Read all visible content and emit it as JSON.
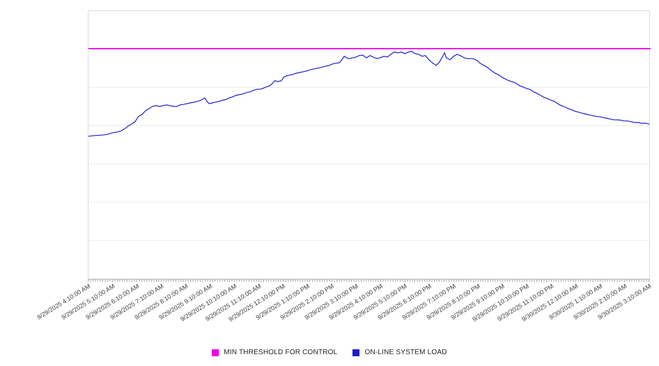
{
  "colors": {
    "threshold": "#ee00ee",
    "load": "#1c1ccd",
    "grid": "#ececec",
    "axis_border": "#c2c2c2",
    "tick": "#a6a6a6",
    "x_label_text": "#3f3f3f",
    "legend_text": "#1f1f1f",
    "background": "#ffffff"
  },
  "legend": {
    "items": [
      {
        "label": "MIN THRESHOLD FOR CONTROL",
        "color": "#ee00ee"
      },
      {
        "label": "ON-LINE SYSTEM LOAD",
        "color": "#1c1ccd"
      }
    ]
  },
  "chart_data": {
    "type": "line",
    "title": "",
    "xlabel": "",
    "ylabel": "",
    "grid": true,
    "legend_position": "bottom",
    "ylim": [
      0,
      7
    ],
    "y_axis_tick_labels_visible": false,
    "y_value_units": "gridline intervals above x-axis (y-axis shows no numeric labels)",
    "x_labels": [
      "9/29/2025 4:10:00 AM",
      "9/29/2025 5:10:00 AM",
      "9/29/2025 6:10:00 AM",
      "9/29/2025 7:10:00 AM",
      "9/29/2025 8:10:00 AM",
      "9/29/2025 9:10:00 AM",
      "9/29/2025 10:10:00 AM",
      "9/29/2025 11:10:00 AM",
      "9/29/2025 12:10:00 PM",
      "9/29/2025 1:10:00 PM",
      "9/29/2025 2:10:00 PM",
      "9/29/2025 3:10:00 PM",
      "9/29/2025 4:10:00 PM",
      "9/29/2025 5:10:00 PM",
      "9/29/2025 6:10:00 PM",
      "9/29/2025 7:10:00 PM",
      "9/29/2025 8:10:00 PM",
      "9/29/2025 9:10:00 PM",
      "9/29/2025 10:10:00 PM",
      "9/29/2025 11:10:00 PM",
      "9/30/2025 12:10:00 AM",
      "9/30/2025 1:10:00 AM",
      "9/30/2025 2:10:00 AM",
      "9/30/2025 3:10:00 AM"
    ],
    "series": [
      {
        "name": "MIN THRESHOLD FOR CONTROL",
        "type": "constant-line",
        "color": "#ee00ee",
        "value": 6.02
      },
      {
        "name": "ON-LINE SYSTEM LOAD",
        "type": "line",
        "color": "#1c1ccd",
        "points_format": "[fraction of x-range 0..1, value in gridline units 0..7]",
        "points": [
          [
            0.0,
            3.73
          ],
          [
            0.011,
            3.75
          ],
          [
            0.024,
            3.76
          ],
          [
            0.034,
            3.78
          ],
          [
            0.042,
            3.82
          ],
          [
            0.051,
            3.84
          ],
          [
            0.058,
            3.87
          ],
          [
            0.065,
            3.93
          ],
          [
            0.071,
            4.0
          ],
          [
            0.077,
            4.05
          ],
          [
            0.083,
            4.11
          ],
          [
            0.089,
            4.24
          ],
          [
            0.096,
            4.31
          ],
          [
            0.102,
            4.4
          ],
          [
            0.108,
            4.45
          ],
          [
            0.114,
            4.51
          ],
          [
            0.12,
            4.53
          ],
          [
            0.127,
            4.51
          ],
          [
            0.133,
            4.53
          ],
          [
            0.139,
            4.55
          ],
          [
            0.145,
            4.53
          ],
          [
            0.152,
            4.51
          ],
          [
            0.158,
            4.51
          ],
          [
            0.163,
            4.55
          ],
          [
            0.169,
            4.56
          ],
          [
            0.175,
            4.58
          ],
          [
            0.181,
            4.6
          ],
          [
            0.188,
            4.62
          ],
          [
            0.194,
            4.64
          ],
          [
            0.2,
            4.67
          ],
          [
            0.205,
            4.71
          ],
          [
            0.207,
            4.73
          ],
          [
            0.211,
            4.65
          ],
          [
            0.215,
            4.58
          ],
          [
            0.22,
            4.6
          ],
          [
            0.226,
            4.62
          ],
          [
            0.232,
            4.64
          ],
          [
            0.239,
            4.67
          ],
          [
            0.245,
            4.69
          ],
          [
            0.251,
            4.73
          ],
          [
            0.257,
            4.76
          ],
          [
            0.263,
            4.8
          ],
          [
            0.27,
            4.82
          ],
          [
            0.276,
            4.84
          ],
          [
            0.282,
            4.87
          ],
          [
            0.288,
            4.89
          ],
          [
            0.294,
            4.93
          ],
          [
            0.301,
            4.96
          ],
          [
            0.306,
            4.96
          ],
          [
            0.311,
            4.98
          ],
          [
            0.317,
            5.02
          ],
          [
            0.323,
            5.05
          ],
          [
            0.328,
            5.11
          ],
          [
            0.332,
            5.18
          ],
          [
            0.338,
            5.16
          ],
          [
            0.344,
            5.18
          ],
          [
            0.348,
            5.27
          ],
          [
            0.353,
            5.31
          ],
          [
            0.359,
            5.33
          ],
          [
            0.365,
            5.35
          ],
          [
            0.371,
            5.38
          ],
          [
            0.378,
            5.4
          ],
          [
            0.384,
            5.42
          ],
          [
            0.39,
            5.44
          ],
          [
            0.396,
            5.47
          ],
          [
            0.402,
            5.49
          ],
          [
            0.409,
            5.51
          ],
          [
            0.415,
            5.53
          ],
          [
            0.422,
            5.56
          ],
          [
            0.429,
            5.58
          ],
          [
            0.435,
            5.62
          ],
          [
            0.441,
            5.64
          ],
          [
            0.447,
            5.65
          ],
          [
            0.451,
            5.71
          ],
          [
            0.456,
            5.82
          ],
          [
            0.46,
            5.78
          ],
          [
            0.465,
            5.76
          ],
          [
            0.471,
            5.78
          ],
          [
            0.477,
            5.8
          ],
          [
            0.483,
            5.84
          ],
          [
            0.489,
            5.85
          ],
          [
            0.496,
            5.78
          ],
          [
            0.502,
            5.84
          ],
          [
            0.508,
            5.8
          ],
          [
            0.514,
            5.76
          ],
          [
            0.52,
            5.78
          ],
          [
            0.527,
            5.82
          ],
          [
            0.533,
            5.8
          ],
          [
            0.539,
            5.87
          ],
          [
            0.545,
            5.93
          ],
          [
            0.552,
            5.91
          ],
          [
            0.558,
            5.93
          ],
          [
            0.564,
            5.89
          ],
          [
            0.57,
            5.93
          ],
          [
            0.576,
            5.95
          ],
          [
            0.583,
            5.89
          ],
          [
            0.589,
            5.87
          ],
          [
            0.595,
            5.82
          ],
          [
            0.601,
            5.84
          ],
          [
            0.607,
            5.73
          ],
          [
            0.614,
            5.64
          ],
          [
            0.62,
            5.58
          ],
          [
            0.626,
            5.67
          ],
          [
            0.631,
            5.8
          ],
          [
            0.635,
            5.91
          ],
          [
            0.638,
            5.78
          ],
          [
            0.645,
            5.73
          ],
          [
            0.651,
            5.82
          ],
          [
            0.657,
            5.87
          ],
          [
            0.663,
            5.84
          ],
          [
            0.67,
            5.78
          ],
          [
            0.676,
            5.76
          ],
          [
            0.682,
            5.76
          ],
          [
            0.688,
            5.75
          ],
          [
            0.693,
            5.71
          ],
          [
            0.698,
            5.64
          ],
          [
            0.703,
            5.6
          ],
          [
            0.708,
            5.56
          ],
          [
            0.713,
            5.51
          ],
          [
            0.719,
            5.44
          ],
          [
            0.725,
            5.38
          ],
          [
            0.732,
            5.33
          ],
          [
            0.738,
            5.27
          ],
          [
            0.744,
            5.22
          ],
          [
            0.75,
            5.18
          ],
          [
            0.757,
            5.15
          ],
          [
            0.763,
            5.11
          ],
          [
            0.769,
            5.05
          ],
          [
            0.775,
            5.02
          ],
          [
            0.781,
            4.98
          ],
          [
            0.788,
            4.95
          ],
          [
            0.794,
            4.89
          ],
          [
            0.8,
            4.85
          ],
          [
            0.806,
            4.8
          ],
          [
            0.812,
            4.75
          ],
          [
            0.819,
            4.71
          ],
          [
            0.825,
            4.67
          ],
          [
            0.831,
            4.64
          ],
          [
            0.837,
            4.58
          ],
          [
            0.843,
            4.53
          ],
          [
            0.85,
            4.49
          ],
          [
            0.856,
            4.45
          ],
          [
            0.862,
            4.42
          ],
          [
            0.868,
            4.38
          ],
          [
            0.874,
            4.36
          ],
          [
            0.881,
            4.33
          ],
          [
            0.887,
            4.31
          ],
          [
            0.893,
            4.29
          ],
          [
            0.899,
            4.27
          ],
          [
            0.906,
            4.25
          ],
          [
            0.912,
            4.24
          ],
          [
            0.918,
            4.22
          ],
          [
            0.924,
            4.2
          ],
          [
            0.93,
            4.18
          ],
          [
            0.937,
            4.16
          ],
          [
            0.943,
            4.16
          ],
          [
            0.949,
            4.15
          ],
          [
            0.955,
            4.13
          ],
          [
            0.961,
            4.13
          ],
          [
            0.968,
            4.11
          ],
          [
            0.974,
            4.09
          ],
          [
            0.98,
            4.09
          ],
          [
            0.986,
            4.07
          ],
          [
            0.993,
            4.07
          ],
          [
            1.0,
            4.05
          ]
        ]
      }
    ]
  }
}
